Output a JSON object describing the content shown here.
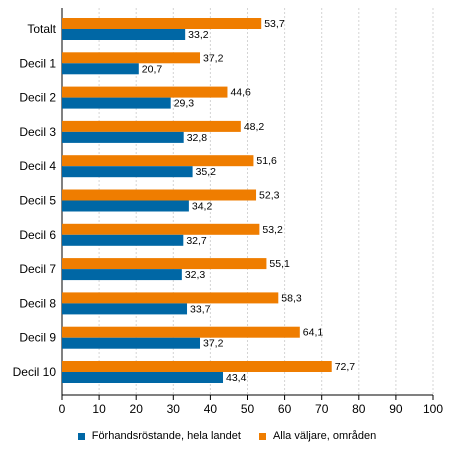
{
  "chart_data": {
    "type": "bar",
    "orientation": "horizontal",
    "categories": [
      "Totalt",
      "Decil 1",
      "Decil 2",
      "Decil 3",
      "Decil 4",
      "Decil 5",
      "Decil 6",
      "Decil 7",
      "Decil 8",
      "Decil 9",
      "Decil 10"
    ],
    "category_labels": [
      "Totalt",
      "Decil 1",
      "Decil 2",
      "Decil 3",
      "Decil 4",
      "Decil 5",
      "Decil 6",
      "Decil 7",
      "Decil 8",
      "Decil 9",
      "Decil 10"
    ],
    "series": [
      {
        "name": "Alla väljare, områden",
        "color": "#ef7d00",
        "values": [
          53.7,
          37.2,
          44.6,
          48.2,
          51.6,
          52.3,
          53.2,
          55.1,
          58.3,
          64.1,
          72.7
        ],
        "value_labels": [
          "53,7",
          "37,2",
          "44,6",
          "48,2",
          "51,6",
          "52,3",
          "53,2",
          "55,1",
          "58,3",
          "64,1",
          "72,7"
        ]
      },
      {
        "name": "Förhandsröstande, hela landet",
        "color": "#0067a5",
        "values": [
          33.2,
          20.7,
          29.3,
          32.8,
          35.2,
          34.2,
          32.7,
          32.3,
          33.7,
          37.2,
          43.4
        ],
        "value_labels": [
          "33,2",
          "20,7",
          "29,3",
          "32,8",
          "35,2",
          "34,2",
          "32,7",
          "32,3",
          "33,7",
          "37,2",
          "43,4"
        ]
      }
    ],
    "xlim": [
      0,
      100
    ],
    "x_ticks": [
      "0",
      "10",
      "20",
      "30",
      "40",
      "50",
      "60",
      "70",
      "80",
      "90",
      "100"
    ],
    "grid": true,
    "legend_position": "bottom",
    "legend": [
      {
        "label": "Förhandsröstande, hela landet",
        "color": "#0067a5"
      },
      {
        "label": "Alla väljare, områden",
        "color": "#ef7d00"
      }
    ]
  }
}
